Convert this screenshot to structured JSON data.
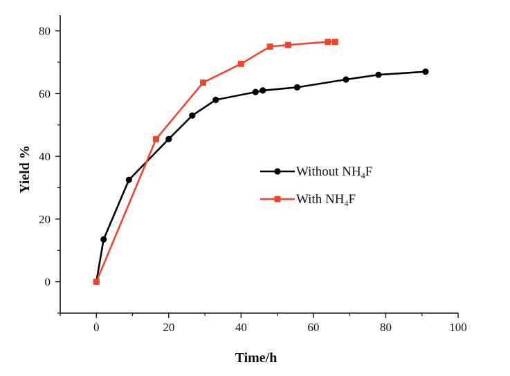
{
  "chart_data": {
    "type": "line",
    "title": "",
    "xlabel": "Time/h",
    "ylabel": "Yield %",
    "xlim": [
      -10,
      100
    ],
    "ylim": [
      -10,
      85
    ],
    "xticks": [
      0,
      20,
      40,
      60,
      80,
      100
    ],
    "yticks": [
      0,
      20,
      40,
      60,
      80
    ],
    "xtick_labels": [
      "0",
      "20",
      "40",
      "60",
      "80",
      "100"
    ],
    "ytick_labels": [
      "0",
      "20",
      "40",
      "60",
      "80"
    ],
    "grid": false,
    "legend_position": "center-right",
    "series": [
      {
        "name": "Without NH4F",
        "legend_prefix": "Without NH",
        "legend_sub": "4",
        "legend_suffix": "F",
        "color": "#000000",
        "marker": "circle",
        "x": [
          0,
          2,
          9,
          20,
          26.5,
          33,
          44,
          46,
          55.5,
          69,
          78,
          91
        ],
        "y": [
          0,
          13.5,
          32.5,
          45.5,
          53,
          58,
          60.5,
          61,
          62,
          64.5,
          66,
          67
        ]
      },
      {
        "name": "With NH4F",
        "legend_prefix": "With NH",
        "legend_sub": "4",
        "legend_suffix": "F",
        "color": "#f0452b",
        "marker": "square",
        "x": [
          0,
          16.5,
          29.5,
          40,
          48,
          53,
          64,
          66
        ],
        "y": [
          0,
          45.5,
          63.5,
          69.5,
          75,
          75.5,
          76.5,
          76.5
        ]
      }
    ]
  }
}
